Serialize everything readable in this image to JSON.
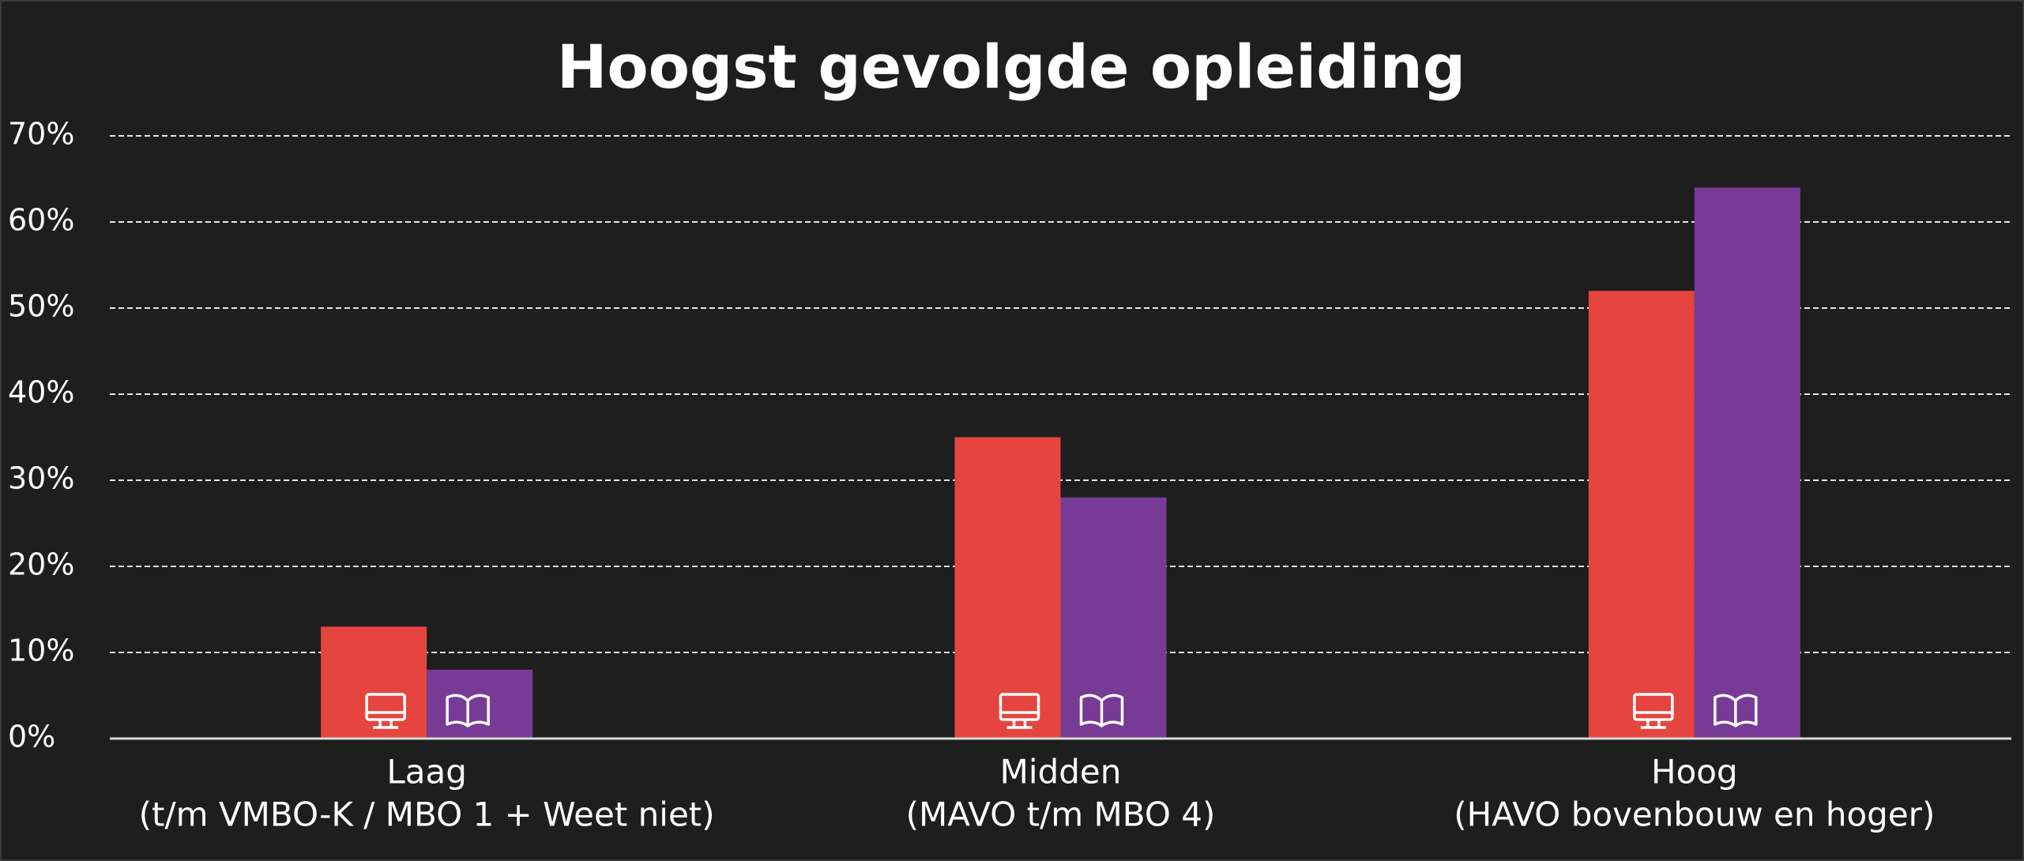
{
  "chart_data": {
    "type": "bar",
    "title": "Hoogst gevolgde opleiding",
    "categories": [
      "Laag",
      "Midden",
      "Hoog"
    ],
    "category_descriptions": [
      "(t/m VMBO-K / MBO 1 + Weet niet)",
      "(MAVO t/m MBO 4)",
      "(HAVO bovenbouw en hoger)"
    ],
    "series": [
      {
        "color": "#e5453e",
        "values": [
          13,
          35,
          52
        ]
      },
      {
        "color": "#773b96",
        "values": [
          8,
          28,
          64
        ]
      }
    ],
    "ylim": [
      0,
      70
    ],
    "yticks": [
      {
        "value": 0,
        "label": "0%"
      },
      {
        "value": 10,
        "label": "10%"
      },
      {
        "value": 20,
        "label": "20%"
      },
      {
        "value": 30,
        "label": "30%"
      },
      {
        "value": 40,
        "label": "40%"
      },
      {
        "value": 50,
        "label": "50%"
      },
      {
        "value": 60,
        "label": "60%"
      },
      {
        "value": 70,
        "label": "70%"
      }
    ],
    "grid": true
  }
}
